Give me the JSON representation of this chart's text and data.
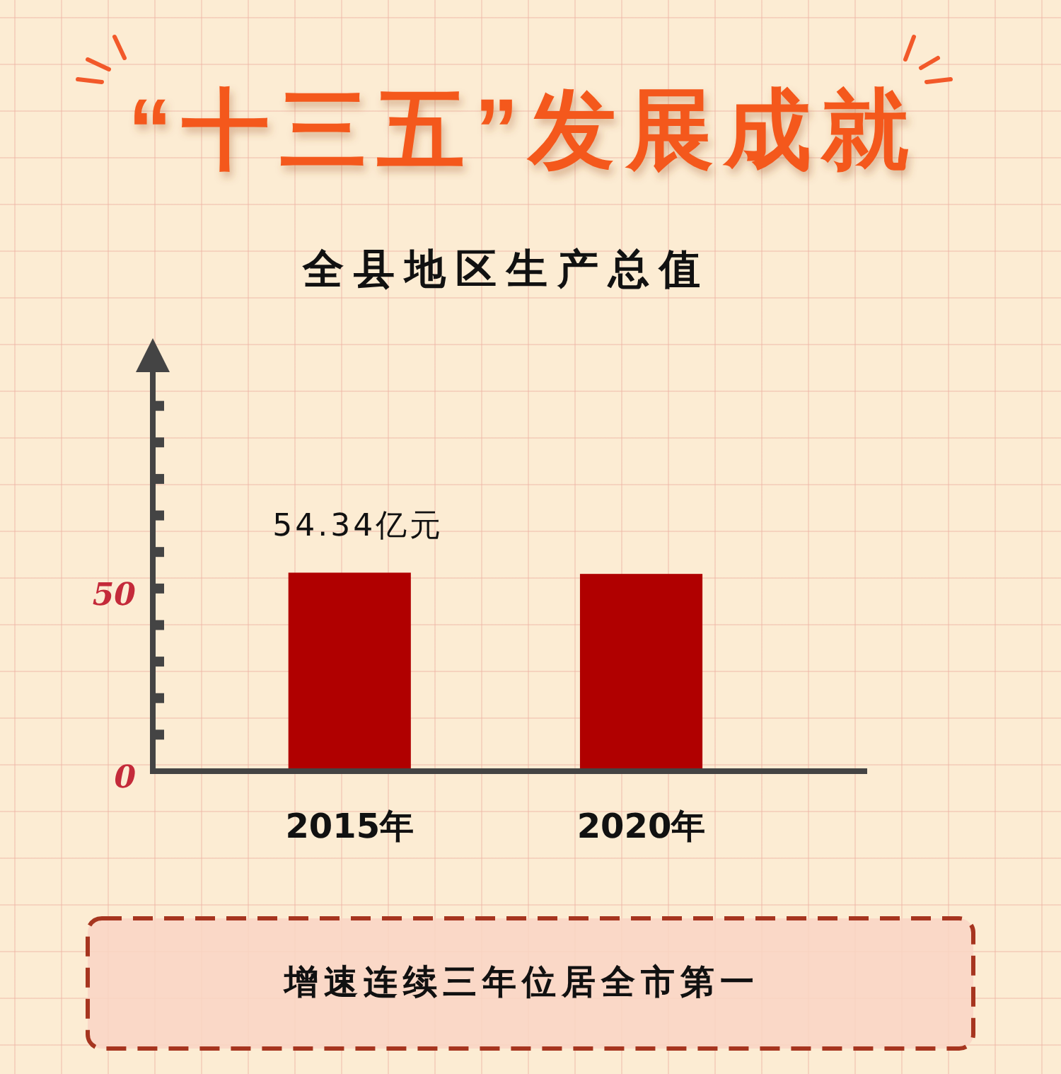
{
  "chart_data": {
    "type": "bar",
    "title": "“十三五”发展成就",
    "subtitle": "全县地区生产总值",
    "categories": [
      "2015年",
      "2020年"
    ],
    "values": [
      54.34,
      54
    ],
    "value_labels": [
      "54.34亿元",
      null
    ],
    "color": "#b00000",
    "ylim": [
      0,
      110
    ],
    "yticks": [
      0,
      {
        "value": 10,
        "label": null
      },
      {
        "value": 20,
        "label": null
      },
      {
        "value": 30,
        "label": null
      },
      {
        "value": 40,
        "label": null
      },
      50,
      {
        "value": 60,
        "label": null
      },
      {
        "value": 70,
        "label": null
      },
      {
        "value": 80,
        "label": null
      },
      {
        "value": 90,
        "label": null
      },
      {
        "value": 100,
        "label": null
      }
    ],
    "annotations": [
      "增速连续三年位居全市第一"
    ]
  }
}
